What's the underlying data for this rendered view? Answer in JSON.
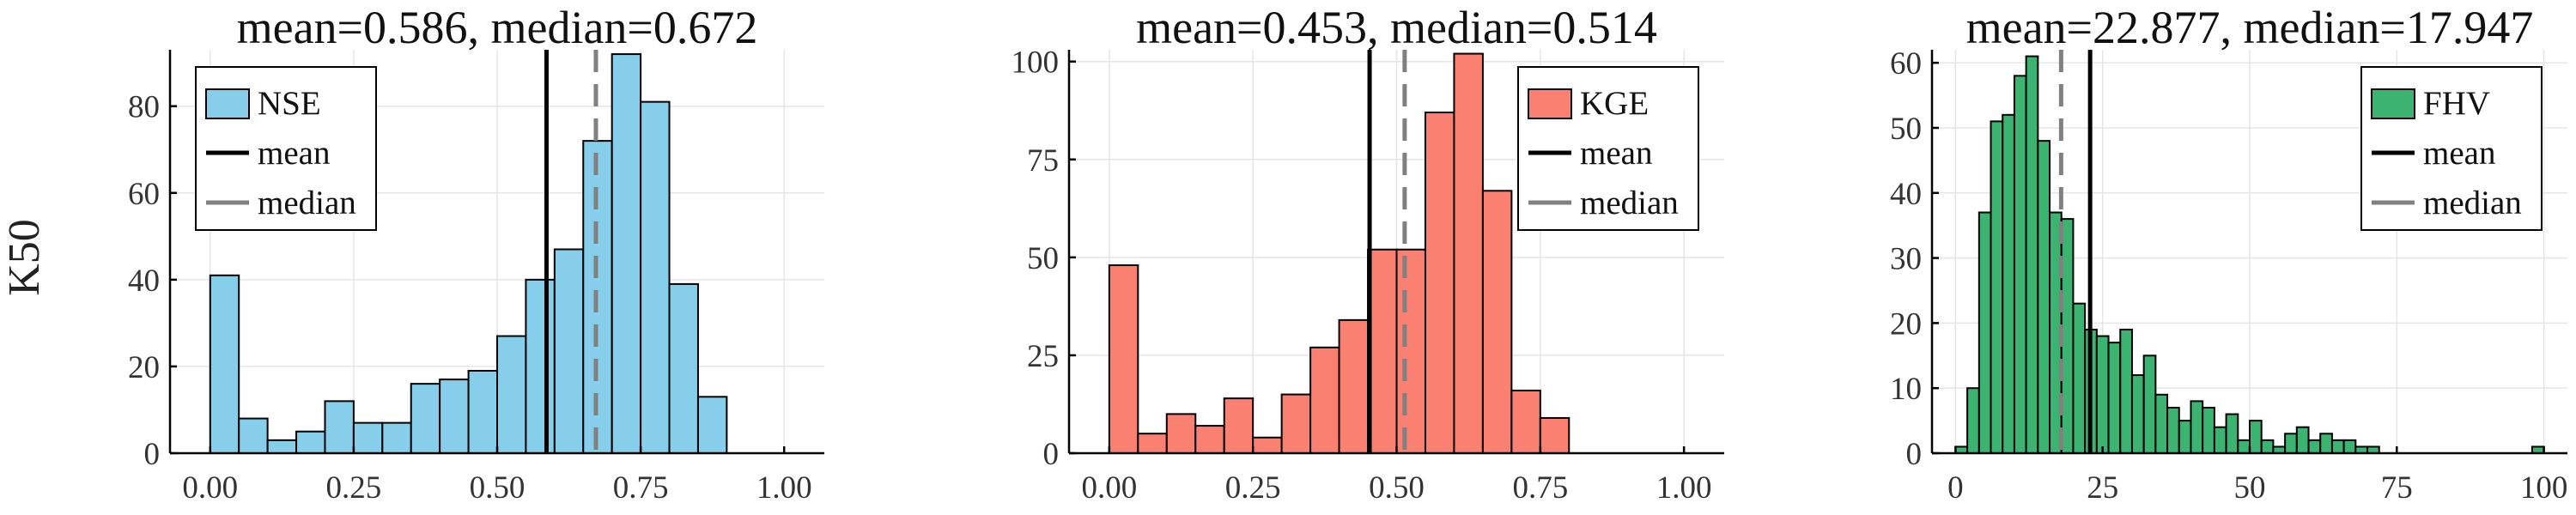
{
  "ylabel": "K50",
  "chart_data": [
    {
      "type": "bar",
      "title": "mean=0.586, median=0.672",
      "series_name": "NSE",
      "color": "#87ceeb",
      "xlim": [
        -0.07,
        1.07
      ],
      "ylim": [
        0,
        93
      ],
      "xticks": [
        0.0,
        0.25,
        0.5,
        0.75,
        1.0
      ],
      "xtick_labels": [
        "0.00",
        "0.25",
        "0.50",
        "0.75",
        "1.00"
      ],
      "yticks": [
        0,
        20,
        40,
        60,
        80
      ],
      "ytick_labels": [
        "0",
        "20",
        "40",
        "60",
        "80"
      ],
      "bin_start": 0.0,
      "bin_width": 0.05,
      "values": [
        41,
        8,
        3,
        5,
        12,
        7,
        7,
        16,
        17,
        19,
        27,
        40,
        47,
        72,
        92,
        81,
        39,
        13
      ],
      "mean": 0.586,
      "median": 0.672,
      "legend": [
        "NSE",
        "mean",
        "median"
      ],
      "legend_position": "top-left"
    },
    {
      "type": "bar",
      "title": "mean=0.453, median=0.514",
      "series_name": "KGE",
      "color": "#fa8072",
      "xlim": [
        -0.07,
        1.07
      ],
      "ylim": [
        0,
        103
      ],
      "xticks": [
        0.0,
        0.25,
        0.5,
        0.75,
        1.0
      ],
      "xtick_labels": [
        "0.00",
        "0.25",
        "0.50",
        "0.75",
        "1.00"
      ],
      "yticks": [
        0,
        25,
        50,
        75,
        100
      ],
      "ytick_labels": [
        "0",
        "25",
        "50",
        "75",
        "100"
      ],
      "bin_start": 0.0,
      "bin_width": 0.05,
      "values": [
        48,
        5,
        10,
        7,
        14,
        4,
        15,
        27,
        34,
        52,
        52,
        87,
        102,
        67,
        16,
        9
      ],
      "mean": 0.453,
      "median": 0.514,
      "legend": [
        "KGE",
        "mean",
        "median"
      ],
      "legend_position": "top-right"
    },
    {
      "type": "bar",
      "title": "mean=22.877, median=17.947",
      "series_name": "FHV",
      "color": "#3cb371",
      "xlim": [
        -4,
        104
      ],
      "ylim": [
        0,
        62
      ],
      "xticks": [
        0,
        25,
        50,
        75,
        100
      ],
      "xtick_labels": [
        "0",
        "25",
        "50",
        "75",
        "100"
      ],
      "yticks": [
        0,
        10,
        20,
        30,
        40,
        50,
        60
      ],
      "ytick_labels": [
        "0",
        "10",
        "20",
        "30",
        "40",
        "50",
        "60"
      ],
      "bin_start": 0,
      "bin_width": 2,
      "values": [
        1,
        10,
        37,
        51,
        52,
        58,
        61,
        48,
        37,
        36,
        23,
        19,
        18,
        17,
        19,
        12,
        15,
        9,
        7,
        5,
        8,
        7,
        4,
        6,
        2,
        5,
        2,
        1,
        3,
        4,
        2,
        3,
        2,
        2,
        1,
        1,
        0,
        0,
        0,
        0,
        0,
        0,
        0,
        0,
        0,
        0,
        0,
        0,
        0,
        1
      ],
      "mean": 22.877,
      "median": 17.947,
      "legend": [
        "FHV",
        "mean",
        "median"
      ],
      "legend_position": "top-right"
    }
  ]
}
